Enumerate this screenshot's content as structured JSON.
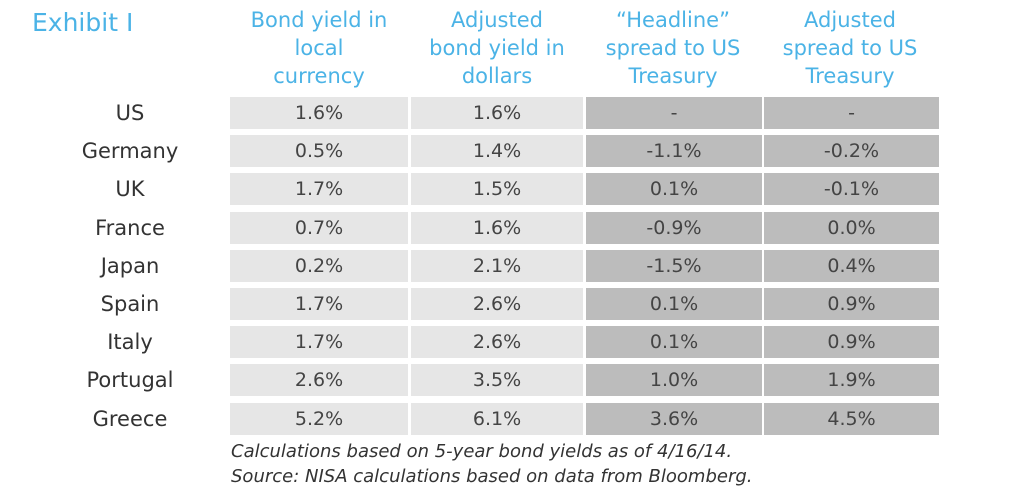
{
  "exhibit_label": "Exhibit I",
  "chart_data": {
    "type": "table",
    "columns": [
      "Bond yield in local currency",
      "Adjusted bond yield in dollars",
      "“Headline” spread to US Treasury",
      "Adjusted spread to US Treasury"
    ],
    "column_lines": [
      [
        "Bond yield in",
        "local",
        "currency"
      ],
      [
        "Adjusted",
        "bond yield in",
        "dollars"
      ],
      [
        "“Headline”",
        "spread to US",
        "Treasury"
      ],
      [
        "Adjusted",
        "spread to US",
        "Treasury"
      ]
    ],
    "rows": [
      {
        "label": "US",
        "values": [
          "1.6%",
          "1.6%",
          "-",
          "-"
        ]
      },
      {
        "label": "Germany",
        "values": [
          "0.5%",
          "1.4%",
          "-1.1%",
          "-0.2%"
        ]
      },
      {
        "label": "UK",
        "values": [
          "1.7%",
          "1.5%",
          "0.1%",
          "-0.1%"
        ]
      },
      {
        "label": "France",
        "values": [
          "0.7%",
          "1.6%",
          "-0.9%",
          "0.0%"
        ]
      },
      {
        "label": "Japan",
        "values": [
          "0.2%",
          "2.1%",
          "-1.5%",
          "0.4%"
        ]
      },
      {
        "label": "Spain",
        "values": [
          "1.7%",
          "2.6%",
          "0.1%",
          "0.9%"
        ]
      },
      {
        "label": "Italy",
        "values": [
          "1.7%",
          "2.6%",
          "0.1%",
          "0.9%"
        ]
      },
      {
        "label": "Portugal",
        "values": [
          "2.6%",
          "3.5%",
          "1.0%",
          "1.9%"
        ]
      },
      {
        "label": "Greece",
        "values": [
          "5.2%",
          "6.1%",
          "3.6%",
          "4.5%"
        ]
      }
    ]
  },
  "notes": [
    "Calculations based on 5-year bond yields as of 4/16/14.",
    "Source: NISA calculations based on data from Bloomberg."
  ],
  "colors": {
    "accent": "#4bb3e6",
    "light_cell": "#e6e6e6",
    "dark_cell": "#bcbcbc"
  }
}
